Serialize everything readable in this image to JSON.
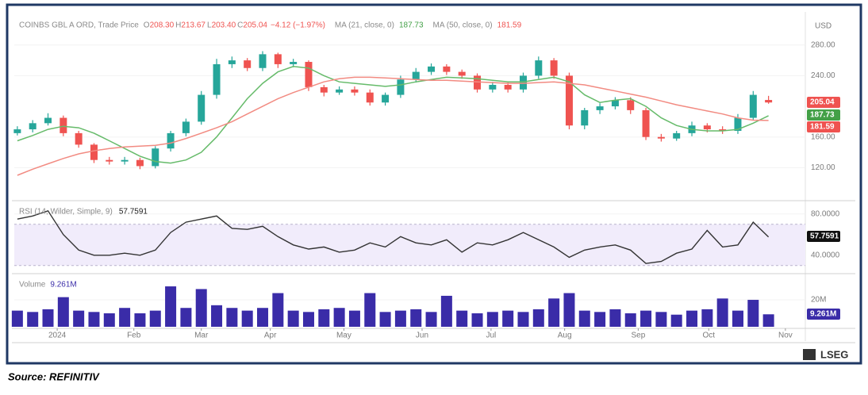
{
  "logo": "LSEG",
  "source": "Source: REFINITIV",
  "chart_data": [
    {
      "type": "candlestick",
      "header": {
        "title": "COINBS GBL A ORD, Trade Price",
        "ohlc_keys": [
          "O",
          "H",
          "L",
          "C"
        ],
        "ohlc_labels": [
          "208.30",
          "213.67",
          "203.40",
          "205.04"
        ],
        "change": "−4.12 (−1.97%)"
      },
      "currency": "USD",
      "up_color": "#26a69a",
      "down_color": "#ef5350",
      "x": [
        0,
        1,
        2,
        3,
        4,
        5,
        6,
        7,
        8,
        9,
        10,
        11,
        12,
        13,
        14,
        15,
        16,
        17,
        18,
        19,
        20,
        21,
        22,
        23,
        24,
        25,
        26,
        27,
        28,
        29,
        30,
        31,
        32,
        33,
        34,
        35,
        36,
        37,
        38,
        39,
        40,
        41,
        42,
        43,
        44,
        45,
        46,
        47,
        48,
        49
      ],
      "open": [
        165,
        170,
        178,
        185,
        165,
        150,
        130,
        128,
        130,
        122,
        145,
        165,
        180,
        215,
        255,
        260,
        250,
        268,
        255,
        258,
        225,
        218,
        222,
        218,
        205,
        215,
        235,
        245,
        252,
        245,
        240,
        222,
        228,
        222,
        240,
        260,
        240,
        175,
        195,
        200,
        208,
        195,
        160,
        158,
        165,
        175,
        170,
        168,
        185,
        208.3
      ],
      "high": [
        174,
        182,
        191,
        188,
        168,
        152,
        134,
        134,
        133,
        148,
        168,
        184,
        220,
        262,
        265,
        263,
        272,
        270,
        262,
        260,
        228,
        226,
        226,
        222,
        218,
        240,
        250,
        256,
        255,
        248,
        243,
        232,
        231,
        244,
        265,
        263,
        244,
        198,
        204,
        212,
        212,
        198,
        164,
        168,
        180,
        178,
        174,
        190,
        220,
        213.67
      ],
      "low": [
        162,
        166,
        175,
        161,
        146,
        126,
        124,
        124,
        118,
        119,
        141,
        161,
        176,
        210,
        250,
        246,
        246,
        250,
        251,
        220,
        213,
        215,
        214,
        201,
        201,
        211,
        231,
        241,
        241,
        236,
        218,
        218,
        218,
        218,
        236,
        236,
        170,
        170,
        190,
        196,
        190,
        156,
        154,
        155,
        161,
        166,
        164,
        164,
        182,
        203.4
      ],
      "close": [
        170,
        178,
        185,
        165,
        150,
        130,
        128,
        130,
        122,
        145,
        165,
        180,
        215,
        255,
        260,
        250,
        268,
        255,
        258,
        225,
        218,
        222,
        218,
        205,
        215,
        235,
        245,
        252,
        245,
        240,
        222,
        228,
        222,
        240,
        260,
        240,
        175,
        195,
        200,
        208,
        195,
        160,
        158,
        165,
        175,
        170,
        168,
        185,
        215,
        205.04
      ],
      "series": [
        {
          "name": "MA (21, close, 0)",
          "color": "#66bb6a",
          "values": [
            155,
            162,
            170,
            174,
            172,
            165,
            155,
            145,
            135,
            128,
            126,
            130,
            140,
            160,
            185,
            210,
            230,
            245,
            252,
            250,
            240,
            232,
            230,
            228,
            226,
            228,
            232,
            235,
            238,
            237,
            236,
            234,
            232,
            232,
            235,
            238,
            232,
            215,
            205,
            208,
            210,
            200,
            185,
            175,
            170,
            168,
            168,
            170,
            178,
            187.73
          ]
        },
        {
          "name": "MA (50, close, 0)",
          "color": "#f28b82",
          "values": [
            110,
            118,
            125,
            132,
            138,
            142,
            145,
            147,
            148,
            149,
            152,
            158,
            165,
            172,
            180,
            190,
            200,
            210,
            218,
            225,
            232,
            236,
            238,
            238,
            237,
            236,
            235,
            234,
            234,
            233,
            232,
            231,
            230,
            230,
            231,
            232,
            230,
            228,
            224,
            220,
            216,
            212,
            207,
            202,
            198,
            194,
            190,
            185,
            182,
            181.59
          ]
        }
      ],
      "ylim": [
        80,
        316
      ],
      "yticks": [
        {
          "value": 120,
          "label": "120.00"
        },
        {
          "value": 160,
          "label": "160.00"
        },
        {
          "value": 240,
          "label": "240.00"
        },
        {
          "value": 280,
          "label": "280.00"
        }
      ],
      "xlim": [
        -0.2,
        51.4
      ],
      "xticks": [
        {
          "value": 2.6,
          "label": "2024"
        },
        {
          "value": 7.6,
          "label": "Feb"
        },
        {
          "value": 12,
          "label": "Mar"
        },
        {
          "value": 16.5,
          "label": "Apr"
        },
        {
          "value": 21.3,
          "label": "May"
        },
        {
          "value": 26.4,
          "label": "Jun"
        },
        {
          "value": 30.9,
          "label": "Jul"
        },
        {
          "value": 35.7,
          "label": "Aug"
        },
        {
          "value": 40.5,
          "label": "Sep"
        },
        {
          "value": 45.1,
          "label": "Oct"
        },
        {
          "value": 50.1,
          "label": "Nov"
        }
      ]
    },
    {
      "type": "line",
      "name": "RSI (14, Wilder, Simple, 9)",
      "color": "#333333",
      "band": [
        30,
        70
      ],
      "band_color": "#f1ecfb",
      "values": [
        75,
        78,
        83,
        60,
        45,
        40,
        40,
        42,
        40,
        45,
        62,
        72,
        75,
        78,
        66,
        65,
        68,
        58,
        50,
        46,
        48,
        43,
        45,
        52,
        48,
        58,
        52,
        50,
        55,
        43,
        52,
        50,
        55,
        62,
        55,
        48,
        38,
        45,
        48,
        50,
        45,
        32,
        34,
        42,
        46,
        64,
        48,
        50,
        72,
        57.7591
      ],
      "ylim": [
        26,
        89
      ],
      "yticks": [
        {
          "value": 40,
          "label": "40.0000"
        },
        {
          "value": 80,
          "label": "80.0000"
        }
      ]
    },
    {
      "type": "bar",
      "name": "Volume",
      "color": "#3a2ca8",
      "values": [
        12,
        11,
        13,
        22,
        12,
        11,
        10,
        14,
        10,
        12,
        30,
        14,
        28,
        16,
        14,
        12,
        14,
        25,
        12,
        11,
        13,
        14,
        12,
        25,
        11,
        12,
        13,
        11,
        23,
        12,
        10,
        11,
        12,
        11,
        13,
        21,
        25,
        12,
        11,
        13,
        10,
        12,
        11,
        9,
        12,
        13,
        21,
        12,
        20,
        9.261
      ],
      "value_labels": {
        "49": "9.261M"
      },
      "ylim": [
        0,
        36.5
      ],
      "yticks": [
        {
          "value": 20,
          "label": "20M"
        }
      ]
    }
  ]
}
